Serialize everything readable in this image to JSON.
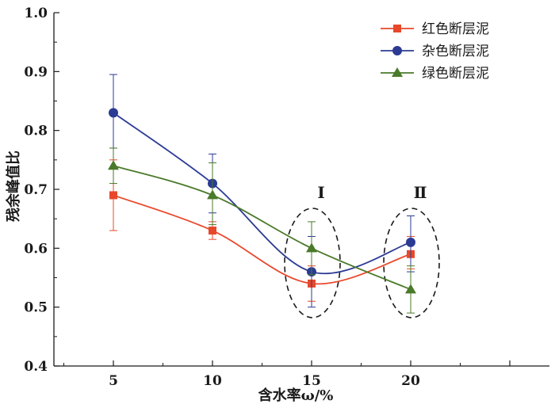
{
  "chart_data": {
    "type": "line",
    "xlabel": "含水率ω/%",
    "ylabel": "残余峰值比",
    "x": [
      5,
      10,
      15,
      20
    ],
    "x_ticks": [
      "5",
      "10",
      "15",
      "20"
    ],
    "xlim": [
      2,
      27
    ],
    "ylim": [
      0.4,
      1.0
    ],
    "y_ticks": [
      "0.4",
      "0.5",
      "0.6",
      "0.7",
      "0.8",
      "0.9",
      "1.0"
    ],
    "legend_position": "top-right",
    "series": [
      {
        "name": "红色断层泥",
        "color": "#e8482a",
        "marker": "square",
        "values": [
          0.69,
          0.63,
          0.54,
          0.59
        ],
        "error": [
          [
            0.63,
            0.75
          ],
          [
            0.615,
            0.645
          ],
          [
            0.51,
            0.57
          ],
          [
            0.565,
            0.62
          ]
        ]
      },
      {
        "name": "杂色断层泥",
        "color": "#2b3b93",
        "marker": "circle",
        "values": [
          0.83,
          0.71,
          0.56,
          0.61
        ],
        "error": [
          [
            0.77,
            0.895
          ],
          [
            0.66,
            0.76
          ],
          [
            0.5,
            0.62
          ],
          [
            0.56,
            0.655
          ]
        ]
      },
      {
        "name": "绿色断层泥",
        "color": "#4a7a2a",
        "marker": "triangle",
        "values": [
          0.74,
          0.69,
          0.6,
          0.53
        ],
        "error": [
          [
            0.71,
            0.77
          ],
          [
            0.64,
            0.745
          ],
          [
            0.555,
            0.645
          ],
          [
            0.49,
            0.57
          ]
        ]
      }
    ],
    "annotations": [
      {
        "label": "Ⅰ",
        "x": 15
      },
      {
        "label": "Ⅱ",
        "x": 20
      }
    ]
  }
}
